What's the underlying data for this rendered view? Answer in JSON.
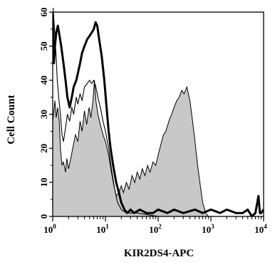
{
  "chart_data": {
    "type": "area",
    "title": "",
    "xlabel": "KIR2DS4-APC",
    "ylabel": "Cell Count",
    "xscale": "log",
    "xlim": [
      1,
      10000
    ],
    "ylim": [
      0,
      60
    ],
    "x_ticks": [
      {
        "value": 1,
        "base": "10",
        "exp": "0"
      },
      {
        "value": 10,
        "base": "10",
        "exp": "1"
      },
      {
        "value": 100,
        "base": "10",
        "exp": "2"
      },
      {
        "value": 1000,
        "base": "10",
        "exp": "3"
      },
      {
        "value": 10000,
        "base": "10",
        "exp": "4"
      }
    ],
    "y_ticks": [
      "0",
      "10",
      "20",
      "30",
      "40",
      "50",
      "60"
    ],
    "y_tick_values": [
      0,
      10,
      20,
      30,
      40,
      50,
      60
    ],
    "grid": false,
    "legend": "none",
    "series": [
      {
        "style": "filled-thin-outline",
        "fill": "#c8c8c8",
        "stroke": "#000000",
        "points": [
          [
            1.0,
            0
          ],
          [
            1.0,
            28
          ],
          [
            1.05,
            31
          ],
          [
            1.1,
            34
          ],
          [
            1.16,
            29
          ],
          [
            1.24,
            32
          ],
          [
            1.33,
            28
          ],
          [
            1.4,
            20
          ],
          [
            1.5,
            15
          ],
          [
            1.6,
            16
          ],
          [
            1.75,
            13
          ],
          [
            1.85,
            17
          ],
          [
            2.0,
            14
          ],
          [
            2.2,
            17
          ],
          [
            2.4,
            20
          ],
          [
            2.7,
            24
          ],
          [
            3.0,
            22
          ],
          [
            3.3,
            28
          ],
          [
            3.6,
            25
          ],
          [
            4.0,
            31
          ],
          [
            4.4,
            27
          ],
          [
            4.9,
            32
          ],
          [
            5.3,
            29
          ],
          [
            5.8,
            34
          ],
          [
            6.2,
            40
          ],
          [
            6.6,
            34
          ],
          [
            7.2,
            30
          ],
          [
            8.0,
            27
          ],
          [
            9.0,
            24
          ],
          [
            10.0,
            22
          ],
          [
            11.5,
            18
          ],
          [
            13.0,
            13
          ],
          [
            14.5,
            9
          ],
          [
            16.0,
            6
          ],
          [
            18.0,
            7
          ],
          [
            20.0,
            9
          ],
          [
            22.0,
            7
          ],
          [
            25.0,
            10
          ],
          [
            28.0,
            8
          ],
          [
            32.0,
            12
          ],
          [
            36.0,
            10
          ],
          [
            40.0,
            13
          ],
          [
            45.0,
            11
          ],
          [
            50.0,
            14
          ],
          [
            56.0,
            12
          ],
          [
            63.0,
            15
          ],
          [
            70.0,
            13
          ],
          [
            80.0,
            16
          ],
          [
            90.0,
            15
          ],
          [
            100.0,
            18
          ],
          [
            112.0,
            21
          ],
          [
            126.0,
            24
          ],
          [
            140.0,
            25
          ],
          [
            160.0,
            28
          ],
          [
            180.0,
            30
          ],
          [
            200.0,
            32
          ],
          [
            225.0,
            34
          ],
          [
            250.0,
            35
          ],
          [
            280.0,
            37
          ],
          [
            310.0,
            36
          ],
          [
            350.0,
            38
          ],
          [
            400.0,
            34
          ],
          [
            450.0,
            28
          ],
          [
            500.0,
            22
          ],
          [
            560.0,
            15
          ],
          [
            630.0,
            9
          ],
          [
            700.0,
            4
          ],
          [
            800.0,
            1
          ],
          [
            900.0,
            0
          ]
        ]
      },
      {
        "style": "thin-line",
        "fill": "none",
        "stroke": "#000000",
        "points": [
          [
            1.0,
            63
          ],
          [
            1.08,
            55
          ],
          [
            1.15,
            48
          ],
          [
            1.22,
            40
          ],
          [
            1.3,
            35
          ],
          [
            1.4,
            30
          ],
          [
            1.5,
            24
          ],
          [
            1.6,
            22
          ],
          [
            1.75,
            26
          ],
          [
            1.9,
            30
          ],
          [
            2.1,
            28
          ],
          [
            2.3,
            32
          ],
          [
            2.5,
            30
          ],
          [
            2.8,
            35
          ],
          [
            3.0,
            33
          ],
          [
            3.3,
            36
          ],
          [
            3.6,
            34
          ],
          [
            4.0,
            38
          ],
          [
            4.5,
            39
          ],
          [
            5.0,
            40
          ],
          [
            5.5,
            39
          ],
          [
            6.0,
            40
          ],
          [
            6.6,
            38
          ],
          [
            7.2,
            35
          ],
          [
            8.0,
            32
          ],
          [
            9.0,
            28
          ],
          [
            10.0,
            25
          ],
          [
            11.5,
            20
          ],
          [
            13.0,
            14
          ],
          [
            15.0,
            8
          ],
          [
            17.0,
            4
          ],
          [
            20.0,
            2
          ],
          [
            25.0,
            1
          ],
          [
            40.0,
            1
          ],
          [
            100.0,
            0
          ],
          [
            10000.0,
            0
          ]
        ]
      },
      {
        "style": "thick-line",
        "fill": "none",
        "stroke": "#000000",
        "points": [
          [
            1.0,
            60
          ],
          [
            1.05,
            45
          ],
          [
            1.1,
            50
          ],
          [
            1.17,
            54
          ],
          [
            1.25,
            56
          ],
          [
            1.35,
            53
          ],
          [
            1.45,
            50
          ],
          [
            1.6,
            45
          ],
          [
            1.75,
            40
          ],
          [
            1.9,
            35
          ],
          [
            2.1,
            32
          ],
          [
            2.3,
            35
          ],
          [
            2.5,
            38
          ],
          [
            2.8,
            40
          ],
          [
            3.0,
            42
          ],
          [
            3.3,
            45
          ],
          [
            3.6,
            48
          ],
          [
            4.0,
            50
          ],
          [
            4.5,
            52
          ],
          [
            5.0,
            53
          ],
          [
            5.5,
            54
          ],
          [
            6.0,
            55
          ],
          [
            6.5,
            57
          ],
          [
            7.0,
            56
          ],
          [
            7.6,
            52
          ],
          [
            8.5,
            47
          ],
          [
            9.5,
            40
          ],
          [
            10.5,
            32
          ],
          [
            11.5,
            25
          ],
          [
            12.5,
            20
          ],
          [
            14.0,
            15
          ],
          [
            16.0,
            10
          ],
          [
            18.0,
            7
          ],
          [
            20.0,
            4
          ],
          [
            23.0,
            2
          ],
          [
            26.0,
            1
          ],
          [
            30.0,
            2
          ],
          [
            35.0,
            1
          ],
          [
            45.0,
            2
          ],
          [
            60.0,
            1
          ],
          [
            80.0,
            1
          ],
          [
            100.0,
            2
          ],
          [
            150.0,
            1
          ],
          [
            200.0,
            2
          ],
          [
            300.0,
            1
          ],
          [
            500.0,
            2
          ],
          [
            700.0,
            1
          ],
          [
            1000.0,
            2
          ],
          [
            1500.0,
            1
          ],
          [
            2000.0,
            2
          ],
          [
            3000.0,
            1
          ],
          [
            4000.0,
            1
          ],
          [
            5000.0,
            2
          ],
          [
            6000.0,
            0
          ],
          [
            7000.0,
            1
          ],
          [
            8000.0,
            6
          ],
          [
            8500.0,
            1
          ],
          [
            9000.0,
            1
          ],
          [
            10000.0,
            2
          ]
        ]
      }
    ]
  }
}
